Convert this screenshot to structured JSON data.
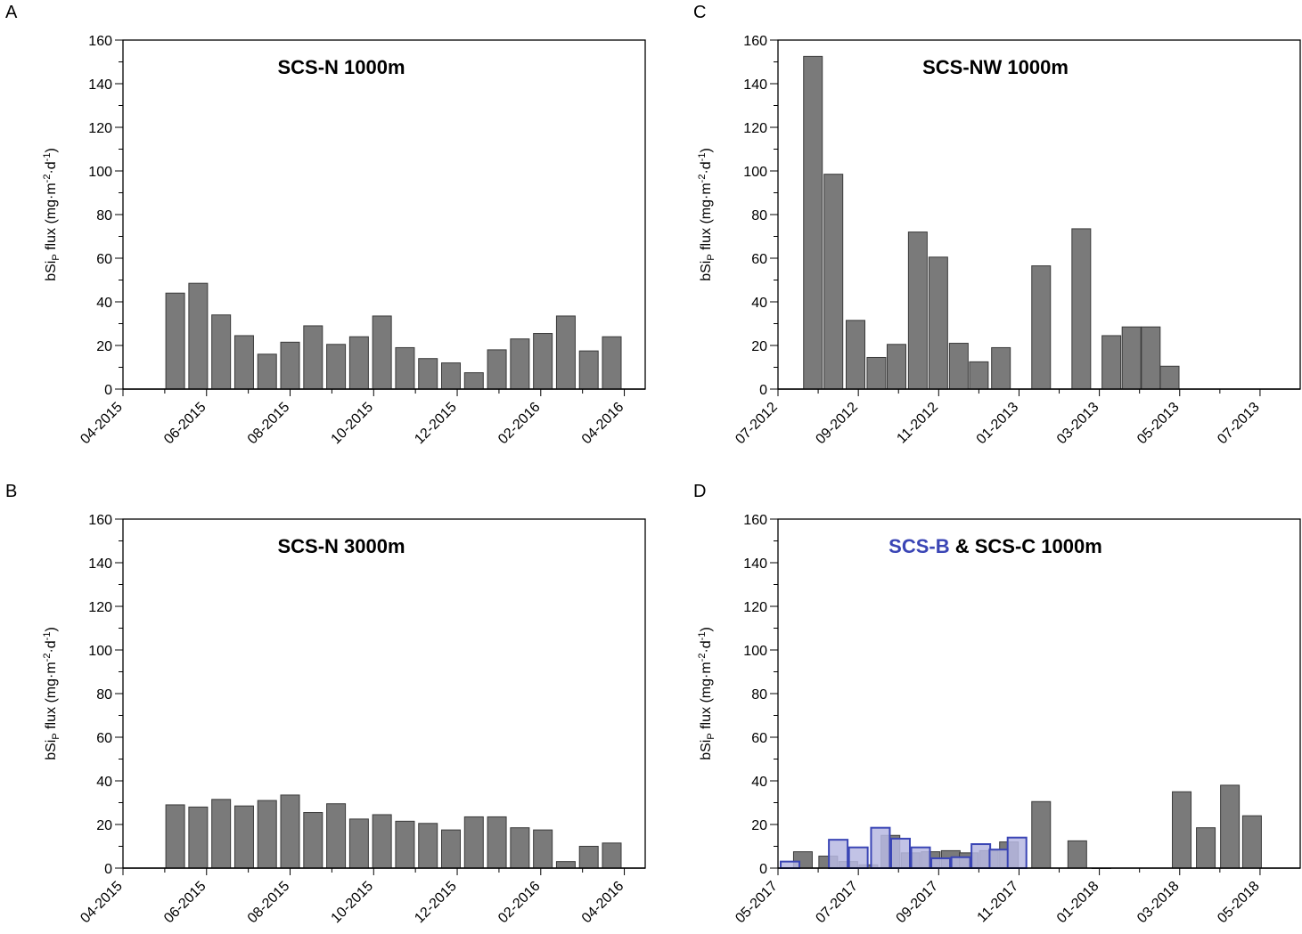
{
  "colors": {
    "bar_fill": "#7a7a7a",
    "bar_stroke": "#3a3a3a",
    "blue_fill": "#b7b9e2",
    "blue_stroke": "#3a45b5",
    "blue_text": "#3a45b5"
  },
  "y_axis_label": {
    "main": "bSi",
    "sub": "P",
    "mid": " flux (mg·m",
    "sup1": "-2",
    "mid2": "·d",
    "sup2": "-1",
    "end": ")"
  },
  "chart_data": [
    {
      "panel": "A",
      "type": "bar",
      "title": "SCS-N 1000m",
      "ylim": [
        0,
        160
      ],
      "yticks": [
        0,
        20,
        40,
        60,
        80,
        100,
        120,
        140,
        160
      ],
      "xlim": [
        0,
        12.5
      ],
      "x_ticks": [
        {
          "pos": 0,
          "label": "04-2015"
        },
        {
          "pos": 2,
          "label": "06-2015"
        },
        {
          "pos": 4,
          "label": "08-2015"
        },
        {
          "pos": 6,
          "label": "10-2015"
        },
        {
          "pos": 8,
          "label": "12-2015"
        },
        {
          "pos": 10,
          "label": "02-2016"
        },
        {
          "pos": 12,
          "label": "04-2016"
        }
      ],
      "series": [
        {
          "name": "SCS-N 1000m",
          "x": [
            1.25,
            1.8,
            2.35,
            2.9,
            3.45,
            4.0,
            4.55,
            5.1,
            5.65,
            6.2,
            6.75,
            7.3,
            7.85,
            8.4,
            8.95,
            9.5,
            10.05,
            10.6,
            11.15,
            11.7
          ],
          "values": [
            44,
            48.5,
            34,
            24.5,
            16,
            21.5,
            29,
            20.5,
            24,
            33.5,
            19,
            14,
            12,
            7.5,
            18,
            23,
            25.5,
            33.5,
            17.5,
            24
          ]
        }
      ]
    },
    {
      "panel": "B",
      "type": "bar",
      "title": "SCS-N 3000m",
      "ylim": [
        0,
        160
      ],
      "yticks": [
        0,
        20,
        40,
        60,
        80,
        100,
        120,
        140,
        160
      ],
      "xlim": [
        0,
        12.5
      ],
      "x_ticks": [
        {
          "pos": 0,
          "label": "04-2015"
        },
        {
          "pos": 2,
          "label": "06-2015"
        },
        {
          "pos": 4,
          "label": "08-2015"
        },
        {
          "pos": 6,
          "label": "10-2015"
        },
        {
          "pos": 8,
          "label": "12-2015"
        },
        {
          "pos": 10,
          "label": "02-2016"
        },
        {
          "pos": 12,
          "label": "04-2016"
        }
      ],
      "series": [
        {
          "name": "SCS-N 3000m",
          "x": [
            1.25,
            1.8,
            2.35,
            2.9,
            3.45,
            4.0,
            4.55,
            5.1,
            5.65,
            6.2,
            6.75,
            7.3,
            7.85,
            8.4,
            8.95,
            9.5,
            10.05,
            10.6,
            11.15,
            11.7
          ],
          "values": [
            29,
            28,
            31.5,
            28.5,
            31,
            33.5,
            25.5,
            29.5,
            22.5,
            24.5,
            21.5,
            20.5,
            17.5,
            23.5,
            23.5,
            18.5,
            17.5,
            3,
            10,
            11.5
          ]
        }
      ]
    },
    {
      "panel": "C",
      "type": "bar",
      "title": "SCS-NW 1000m",
      "ylim": [
        0,
        160
      ],
      "yticks": [
        0,
        20,
        40,
        60,
        80,
        100,
        120,
        140,
        160
      ],
      "xlim": [
        0,
        13.0
      ],
      "x_ticks": [
        {
          "pos": 0,
          "label": "07-2012"
        },
        {
          "pos": 2,
          "label": "09-2012"
        },
        {
          "pos": 4,
          "label": "11-2012"
        },
        {
          "pos": 6,
          "label": "01-2013"
        },
        {
          "pos": 8,
          "label": "03-2013"
        },
        {
          "pos": 10,
          "label": "05-2013"
        },
        {
          "pos": 12,
          "label": "07-2013"
        }
      ],
      "series": [
        {
          "name": "SCS-NW 1000m",
          "x": [
            0.87,
            1.38,
            1.93,
            2.45,
            2.95,
            3.48,
            3.99,
            4.5,
            5.0,
            5.55,
            6.55,
            7.55,
            8.3,
            8.8,
            9.28,
            9.75
          ],
          "values": [
            152.5,
            98.5,
            31.5,
            14.5,
            20.5,
            72,
            60.5,
            21,
            12.5,
            19,
            56.5,
            73.5,
            24.5,
            28.5,
            28.5,
            10.5
          ]
        }
      ]
    },
    {
      "panel": "D",
      "type": "bar",
      "title": "SCS-B & SCS-C 1000m",
      "title_parts": {
        "blue": "SCS-B",
        "black": " & SCS-C 1000m"
      },
      "ylim": [
        0,
        160
      ],
      "yticks": [
        0,
        20,
        40,
        60,
        80,
        100,
        120,
        140,
        160
      ],
      "xlim": [
        0,
        13.0
      ],
      "x_ticks": [
        {
          "pos": 0,
          "label": "05-2017"
        },
        {
          "pos": 2,
          "label": "07-2017"
        },
        {
          "pos": 4,
          "label": "09-2017"
        },
        {
          "pos": 6,
          "label": "11-2017"
        },
        {
          "pos": 8,
          "label": "01-2018"
        },
        {
          "pos": 10,
          "label": "03-2018"
        },
        {
          "pos": 12,
          "label": "05-2018"
        }
      ],
      "series": [
        {
          "name": "SCS-C 1000m",
          "color": "gray",
          "x": [
            0.62,
            1.25,
            1.75,
            2.25,
            2.8,
            3.3,
            3.8,
            4.3,
            4.75,
            5.25,
            5.75,
            6.55,
            7.45,
            8.05,
            10.05,
            10.65,
            11.25,
            11.8
          ],
          "values": [
            7.5,
            5.5,
            3,
            1.5,
            15,
            7,
            7.5,
            8,
            7,
            8,
            12,
            30.5,
            12.5,
            0,
            35,
            18.5,
            38,
            24
          ]
        },
        {
          "name": "SCS-B 1000m",
          "color": "blue",
          "x": [
            0.3,
            1.5,
            2.0,
            2.55,
            3.05,
            3.55,
            4.05,
            4.55,
            5.05,
            5.5,
            5.95
          ],
          "values": [
            3,
            13,
            9.5,
            18.5,
            13.5,
            9.5,
            4.5,
            5,
            11,
            8.5,
            14
          ]
        }
      ]
    }
  ]
}
